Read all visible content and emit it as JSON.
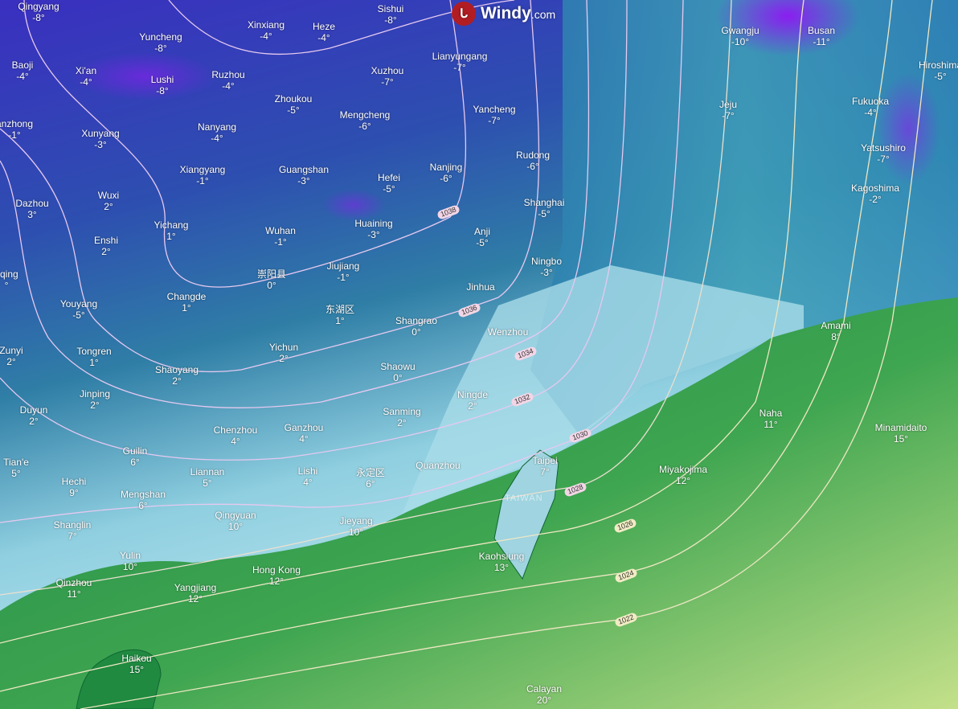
{
  "brand": {
    "name": "Windy",
    "suffix": ".com",
    "icon": "windy-logo-icon"
  },
  "colors": {
    "cold": "#3b1fc4",
    "mid": "#2f8fa8",
    "light": "#bfe7ee",
    "warm": "#2e9a48",
    "warmer": "#b9dd7a",
    "isobar": "#e8d3ef"
  },
  "region_label": "TAIWAN",
  "cities": [
    {
      "name": "Qingyang",
      "temp": "-8°"
    },
    {
      "name": "Yuncheng",
      "temp": "-8°"
    },
    {
      "name": "Xinxiang",
      "temp": "-4°"
    },
    {
      "name": "Heze",
      "temp": "-4°"
    },
    {
      "name": "Sishui",
      "temp": "-8°"
    },
    {
      "name": "Lianyungang",
      "temp": "-7°"
    },
    {
      "name": "Baoji",
      "temp": "-4°"
    },
    {
      "name": "Xi'an",
      "temp": "-4°"
    },
    {
      "name": "Lushi",
      "temp": "-8°"
    },
    {
      "name": "Ruzhou",
      "temp": "-4°"
    },
    {
      "name": "Zhoukou",
      "temp": "-5°"
    },
    {
      "name": "Xuzhou",
      "temp": "-7°"
    },
    {
      "name": "Mengcheng",
      "temp": "-6°"
    },
    {
      "name": "Yancheng",
      "temp": "-7°"
    },
    {
      "name": "anzhong",
      "temp": "-1°"
    },
    {
      "name": "Xunyang",
      "temp": "-3°"
    },
    {
      "name": "Nanyang",
      "temp": "-4°"
    },
    {
      "name": "Xiangyang",
      "temp": "-1°"
    },
    {
      "name": "Guangshan",
      "temp": "-3°"
    },
    {
      "name": "Hefei",
      "temp": "-5°"
    },
    {
      "name": "Nanjing",
      "temp": "-6°"
    },
    {
      "name": "Rudong",
      "temp": "-6°"
    },
    {
      "name": "Dazhou",
      "temp": "3°"
    },
    {
      "name": "Wuxi",
      "temp": "2°"
    },
    {
      "name": "Yichang",
      "temp": "1°"
    },
    {
      "name": "Wuhan",
      "temp": "-1°"
    },
    {
      "name": "Huaining",
      "temp": "-3°"
    },
    {
      "name": "Anji",
      "temp": "-5°"
    },
    {
      "name": "Shanghai",
      "temp": "-5°"
    },
    {
      "name": "Enshi",
      "temp": "2°"
    },
    {
      "name": "gqing",
      "temp": "°"
    },
    {
      "name": "崇阳县",
      "temp": "0°"
    },
    {
      "name": "Jiujiang",
      "temp": "-1°"
    },
    {
      "name": "Ningbo",
      "temp": "-3°"
    },
    {
      "name": "Changde",
      "temp": "1°"
    },
    {
      "name": "Youyang",
      "temp": "-5°"
    },
    {
      "name": "东湖区",
      "temp": "1°"
    },
    {
      "name": "Jinhua",
      "temp": ""
    },
    {
      "name": "Shangrao",
      "temp": "0°"
    },
    {
      "name": "Zunyi",
      "temp": "2°"
    },
    {
      "name": "Tongren",
      "temp": "1°"
    },
    {
      "name": "Yichun",
      "temp": "2°"
    },
    {
      "name": "Shaoyang",
      "temp": "2°"
    },
    {
      "name": "Shaowu",
      "temp": "0°"
    },
    {
      "name": "Wenzhou",
      "temp": ""
    },
    {
      "name": "Jinping",
      "temp": "2°"
    },
    {
      "name": "Ningde",
      "temp": "2°"
    },
    {
      "name": "Duyun",
      "temp": "2°"
    },
    {
      "name": "Sanming",
      "temp": "2°"
    },
    {
      "name": "Chenzhou",
      "temp": "4°"
    },
    {
      "name": "Ganzhou",
      "temp": "4°"
    },
    {
      "name": "Guilin",
      "temp": "6°"
    },
    {
      "name": "Tian'e",
      "temp": "5°"
    },
    {
      "name": "Hechi",
      "temp": "9°"
    },
    {
      "name": "Liannan",
      "temp": "5°"
    },
    {
      "name": "Lishi",
      "temp": "4°"
    },
    {
      "name": "永定区",
      "temp": "6°"
    },
    {
      "name": "Quanzhou",
      "temp": ""
    },
    {
      "name": "Mengshan",
      "temp": "6°"
    },
    {
      "name": "Taipei",
      "temp": "7°"
    },
    {
      "name": "Qingyuan",
      "temp": "10°"
    },
    {
      "name": "Jieyang",
      "temp": "10°"
    },
    {
      "name": "Shanglin",
      "temp": "7°"
    },
    {
      "name": "Yulin",
      "temp": "10°"
    },
    {
      "name": "Kaohsiung",
      "temp": "13°"
    },
    {
      "name": "Hong Kong",
      "temp": "12°"
    },
    {
      "name": "Qinzhou",
      "temp": "11°"
    },
    {
      "name": "Yangjiang",
      "temp": "12°"
    },
    {
      "name": "Haikou",
      "temp": "15°"
    },
    {
      "name": "Calayan",
      "temp": "20°"
    },
    {
      "name": "Miyakojima",
      "temp": "12°"
    },
    {
      "name": "Naha",
      "temp": "11°"
    },
    {
      "name": "Minamidaito",
      "temp": "15°"
    },
    {
      "name": "Amami",
      "temp": "8°"
    },
    {
      "name": "Gwangju",
      "temp": "-10°"
    },
    {
      "name": "Busan",
      "temp": "-11°"
    },
    {
      "name": "Jeju",
      "temp": "-7°"
    },
    {
      "name": "Fukuoka",
      "temp": "-4°"
    },
    {
      "name": "Yatsushiro",
      "temp": "-7°"
    },
    {
      "name": "Kagoshima",
      "temp": "-2°"
    },
    {
      "name": "Hiroshima",
      "temp": "-5°"
    }
  ],
  "isobars": [
    "1038",
    "1036",
    "1034",
    "1032",
    "1030",
    "1028",
    "1026",
    "1024",
    "1022"
  ]
}
